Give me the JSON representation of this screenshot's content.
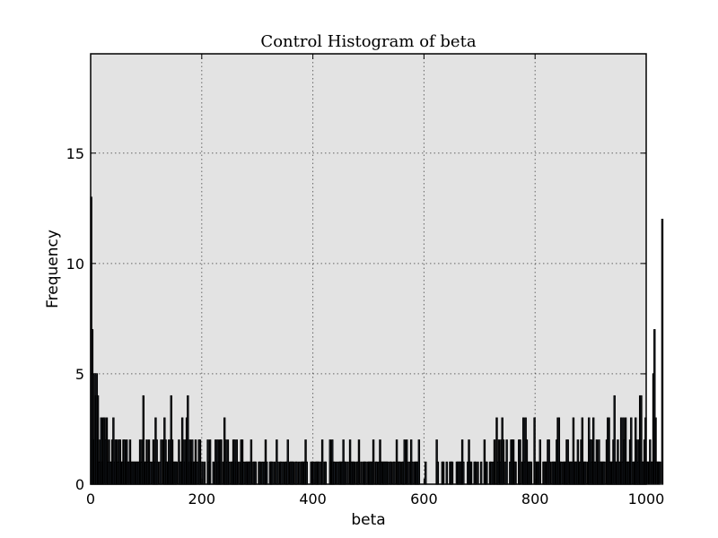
{
  "chart_data": {
    "type": "bar",
    "title": "Control Histogram of beta",
    "xlabel": "beta",
    "ylabel": "Frequency",
    "xlim": [
      0,
      1000
    ],
    "ylim": [
      0,
      19.5
    ],
    "grid": true,
    "xticks": [
      0,
      200,
      400,
      600,
      800,
      1000
    ],
    "yticks": [
      0,
      5,
      10,
      15
    ],
    "bin_width": 2,
    "bin_start": 0,
    "colors": {
      "plot_bg": "#e3e3e3",
      "bar_fill": "#90aacc",
      "bar_edge": "#000000",
      "axis": "#000000"
    },
    "counts": [
      13,
      7,
      2,
      5,
      4,
      5,
      4,
      1,
      2,
      3,
      1,
      3,
      3,
      2,
      3,
      1,
      2,
      1,
      1,
      2,
      3,
      1,
      2,
      2,
      1,
      2,
      2,
      1,
      1,
      2,
      2,
      1,
      2,
      1,
      1,
      2,
      1,
      1,
      1,
      1,
      1,
      1,
      1,
      1,
      2,
      1,
      2,
      4,
      1,
      1,
      2,
      1,
      2,
      1,
      0,
      1,
      2,
      1,
      3,
      2,
      1,
      0,
      1,
      2,
      0,
      2,
      3,
      2,
      1,
      1,
      2,
      1,
      4,
      2,
      1,
      1,
      1,
      1,
      0,
      2,
      1,
      1,
      3,
      2,
      1,
      2,
      3,
      4,
      1,
      2,
      1,
      2,
      1,
      1,
      2,
      1,
      0,
      2,
      2,
      0,
      1,
      0,
      1,
      0,
      0,
      2,
      1,
      2,
      0,
      0,
      1,
      0,
      2,
      1,
      2,
      1,
      2,
      2,
      0,
      1,
      3,
      2,
      1,
      2,
      1,
      0,
      1,
      1,
      2,
      2,
      1,
      2,
      1,
      0,
      1,
      2,
      2,
      1,
      0,
      1,
      1,
      1,
      1,
      1,
      2,
      0,
      1,
      1,
      1,
      0,
      0,
      1,
      1,
      0,
      1,
      0,
      1,
      2,
      1,
      0,
      0,
      1,
      1,
      1,
      0,
      1,
      0,
      2,
      1,
      0,
      1,
      1,
      0,
      1,
      0,
      1,
      1,
      2,
      0,
      1,
      1,
      1,
      1,
      0,
      1,
      1,
      0,
      1,
      0,
      1,
      1,
      1,
      1,
      2,
      1,
      0,
      0,
      0,
      1,
      1,
      1,
      0,
      1,
      1,
      1,
      1,
      0,
      1,
      2,
      0,
      1,
      1,
      0,
      0,
      0,
      2,
      1,
      2,
      1,
      1,
      0,
      1,
      0,
      1,
      1,
      1,
      1,
      2,
      1,
      1,
      0,
      1,
      0,
      2,
      1,
      1,
      1,
      1,
      0,
      1,
      1,
      2,
      0,
      1,
      0,
      1,
      1,
      1,
      0,
      1,
      1,
      1,
      1,
      1,
      2,
      0,
      1,
      1,
      0,
      1,
      2,
      1,
      1,
      1,
      1,
      1,
      1,
      1,
      0,
      1,
      1,
      0,
      1,
      1,
      0,
      2,
      1,
      1,
      1,
      0,
      1,
      1,
      2,
      0,
      2,
      1,
      0,
      1,
      2,
      1,
      0,
      1,
      1,
      1,
      1,
      2,
      0,
      0,
      0,
      0,
      0,
      1,
      0,
      0,
      0,
      0,
      0,
      0,
      0,
      0,
      0,
      2,
      1,
      0,
      0,
      0,
      1,
      1,
      0,
      0,
      1,
      0,
      0,
      1,
      1,
      1,
      0,
      0,
      0,
      1,
      1,
      1,
      1,
      1,
      2,
      1,
      0,
      0,
      0,
      1,
      2,
      1,
      1,
      0,
      0,
      1,
      1,
      0,
      1,
      0,
      0,
      1,
      0,
      0,
      2,
      1,
      1,
      0,
      0,
      1,
      1,
      0,
      1,
      2,
      0,
      3,
      1,
      2,
      1,
      2,
      3,
      2,
      0,
      1,
      2,
      0,
      0,
      1,
      2,
      2,
      2,
      1,
      1,
      0,
      0,
      2,
      2,
      0,
      1,
      3,
      1,
      3,
      2,
      1,
      1,
      1,
      1,
      0,
      0,
      3,
      1,
      1,
      1,
      1,
      2,
      0,
      0,
      1,
      1,
      1,
      1,
      2,
      2,
      1,
      0,
      1,
      1,
      1,
      1,
      2,
      3,
      3,
      1,
      1,
      0,
      1,
      1,
      1,
      2,
      2,
      1,
      1,
      1,
      1,
      3,
      1,
      1,
      1,
      2,
      1,
      1,
      2,
      3,
      1,
      1,
      1,
      0,
      1,
      3,
      2,
      2,
      1,
      3,
      1,
      1,
      2,
      1,
      2,
      1,
      1,
      1,
      1,
      1,
      0,
      2,
      3,
      3,
      1,
      1,
      1,
      2,
      4,
      1,
      1,
      2,
      1,
      1,
      3,
      1,
      3,
      2,
      3,
      1,
      1,
      1,
      2,
      3,
      0,
      1,
      1,
      3,
      2,
      1,
      2,
      4,
      4,
      1,
      1,
      2,
      3,
      1,
      1,
      1,
      2,
      1,
      1,
      5,
      7,
      3,
      1,
      1,
      1,
      1,
      0,
      12
    ]
  }
}
